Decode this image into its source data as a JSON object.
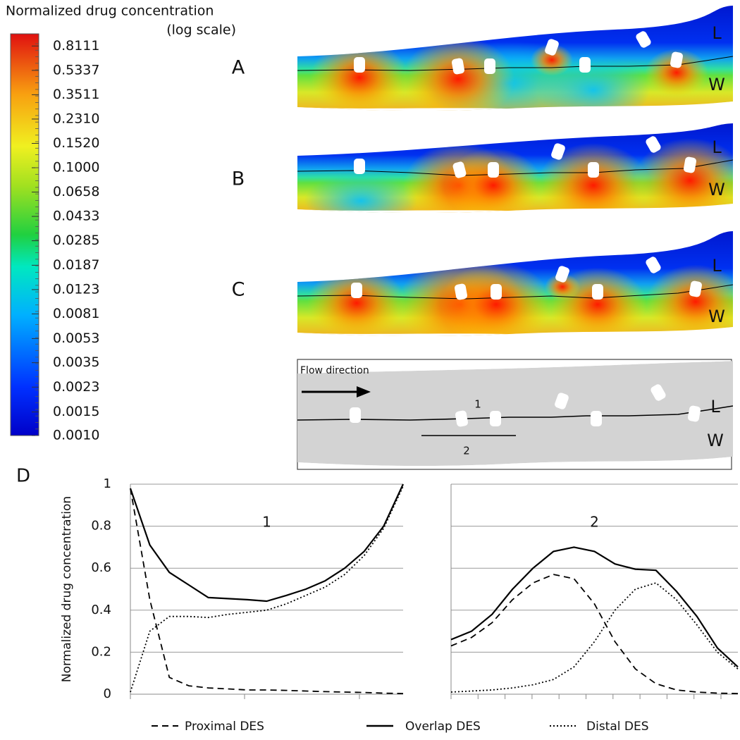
{
  "colorbar": {
    "title": "Normalized drug concentration",
    "subtitle": "(log scale)",
    "log": true,
    "lim": [
      0.001,
      1
    ],
    "ticks": [
      0.8111,
      0.5337,
      0.3511,
      {
        "value": 0.231,
        "label": "0.2310"
      },
      {
        "value": 0.152,
        "label": "0.1520"
      },
      {
        "value": 0.1,
        "label": "0.1000"
      },
      0.0658,
      0.0433,
      0.0285,
      0.0187,
      0.0123,
      0.0081,
      0.0053,
      0.0035,
      0.0023,
      0.0015,
      {
        "value": 0.001,
        "label": "0.0010"
      }
    ]
  },
  "panels": [
    {
      "label": "A",
      "lumen": "L",
      "wall": "W"
    },
    {
      "label": "B",
      "lumen": "L",
      "wall": "W"
    },
    {
      "label": "C",
      "lumen": "L",
      "wall": "W"
    }
  ],
  "schematic": {
    "flow": "Flow direction",
    "lumen": "L",
    "wall": "W",
    "line1": "1",
    "line2": "2"
  },
  "panel_d_label": "D",
  "chart_data": [
    {
      "type": "line",
      "title": "1",
      "y_label": "Normalized drug concentration",
      "ylim": [
        0,
        1
      ],
      "yticks": [
        0,
        0.2,
        0.4,
        0.6,
        0.8,
        1
      ],
      "grid": true,
      "series": [
        {
          "name": "Proximal DES",
          "color": "#000000",
          "style": "dashed",
          "values": [
            0.98,
            0.45,
            0.08,
            0.04,
            0.03,
            0.025,
            0.02,
            0.02,
            0.018,
            0.015,
            0.012,
            0.01,
            0.008,
            0.005,
            0.003
          ]
        },
        {
          "name": "Overlap DES",
          "color": "#000000",
          "style": "solid",
          "values": [
            0.98,
            0.71,
            0.58,
            0.52,
            0.46,
            0.455,
            0.45,
            0.443,
            0.47,
            0.5,
            0.54,
            0.6,
            0.68,
            0.8,
            1.0
          ]
        },
        {
          "name": "Distal DES",
          "color": "#000000",
          "style": "dotted",
          "values": [
            0.01,
            0.3,
            0.37,
            0.37,
            0.365,
            0.38,
            0.39,
            0.4,
            0.43,
            0.47,
            0.51,
            0.57,
            0.66,
            0.79,
            0.99
          ]
        }
      ]
    },
    {
      "type": "line",
      "title": "2",
      "ylim": [
        0,
        1
      ],
      "yticks": [
        0,
        0.2,
        0.4,
        0.6,
        0.8,
        1
      ],
      "grid": true,
      "series": [
        {
          "name": "Proximal DES",
          "color": "#000000",
          "style": "dashed",
          "values": [
            0.23,
            0.27,
            0.34,
            0.45,
            0.53,
            0.57,
            0.55,
            0.43,
            0.25,
            0.12,
            0.05,
            0.02,
            0.01,
            0.005,
            0.003
          ]
        },
        {
          "name": "Overlap DES",
          "color": "#000000",
          "style": "solid",
          "values": [
            0.26,
            0.3,
            0.38,
            0.5,
            0.6,
            0.68,
            0.7,
            0.68,
            0.62,
            0.595,
            0.59,
            0.49,
            0.37,
            0.22,
            0.13
          ]
        },
        {
          "name": "Distal DES",
          "color": "#000000",
          "style": "dotted",
          "values": [
            0.01,
            0.015,
            0.02,
            0.03,
            0.045,
            0.07,
            0.13,
            0.25,
            0.4,
            0.5,
            0.53,
            0.45,
            0.33,
            0.2,
            0.12
          ]
        }
      ]
    }
  ]
}
